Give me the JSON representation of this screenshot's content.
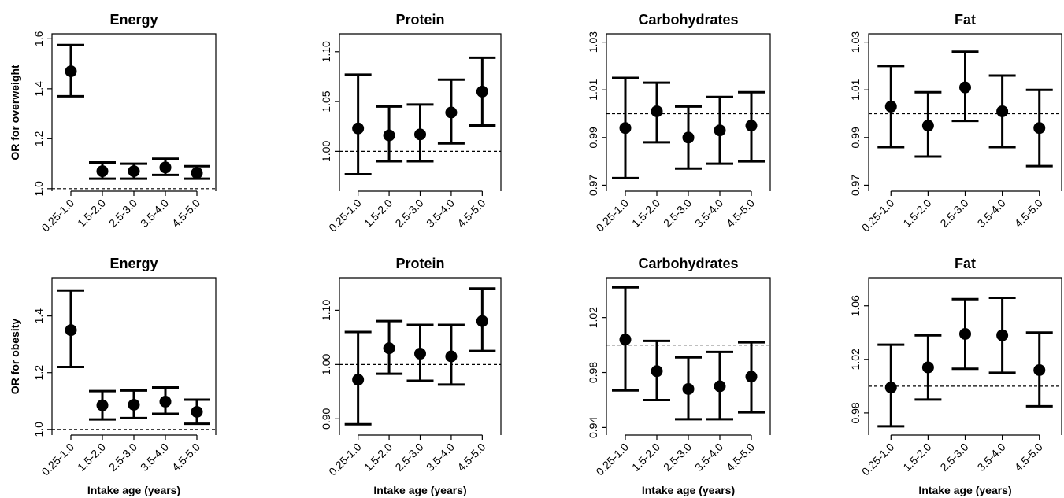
{
  "chart_data": [
    {
      "type": "errorbar",
      "row": 0,
      "col": 0,
      "title": "Energy",
      "ylabel": "OR for overweight",
      "xlabel": "",
      "categories": [
        "0.25-1.0",
        "1.5-2.0",
        "2.5-3.0",
        "3.5-4.0",
        "4.5-5.0"
      ],
      "values": [
        1.47,
        1.07,
        1.07,
        1.085,
        1.063
      ],
      "lower": [
        1.37,
        1.04,
        1.04,
        1.055,
        1.04
      ],
      "upper": [
        1.575,
        1.105,
        1.1,
        1.12,
        1.09
      ],
      "reference": 1.0,
      "ylim": [
        0.99,
        1.62
      ],
      "yticks": [
        1.0,
        1.2,
        1.4,
        1.6
      ],
      "ytick_labels": [
        "1.0",
        "1.2",
        "1.4",
        "1.6"
      ]
    },
    {
      "type": "errorbar",
      "row": 0,
      "col": 1,
      "title": "Protein",
      "ylabel": "",
      "xlabel": "",
      "categories": [
        "0.25-1.0",
        "1.5-2.0",
        "2.5-3.0",
        "3.5-4.0",
        "4.5-5.0"
      ],
      "values": [
        1.023,
        1.016,
        1.017,
        1.039,
        1.06
      ],
      "lower": [
        0.977,
        0.99,
        0.99,
        1.008,
        1.026
      ],
      "upper": [
        1.077,
        1.045,
        1.047,
        1.072,
        1.094
      ],
      "reference": 1.0,
      "ylim": [
        0.96,
        1.118
      ],
      "yticks": [
        1.0,
        1.05,
        1.1
      ],
      "ytick_labels": [
        "1.00",
        "1.05",
        "1.10"
      ]
    },
    {
      "type": "errorbar",
      "row": 0,
      "col": 2,
      "title": "Carbohydrates",
      "ylabel": "",
      "xlabel": "",
      "categories": [
        "0.25-1.0",
        "1.5-2.0",
        "2.5-3.0",
        "3.5-4.0",
        "4.5-5.0"
      ],
      "values": [
        0.994,
        1.001,
        0.99,
        0.993,
        0.995
      ],
      "lower": [
        0.973,
        0.988,
        0.977,
        0.979,
        0.98
      ],
      "upper": [
        1.015,
        1.013,
        1.003,
        1.007,
        1.009
      ],
      "reference": 1.0,
      "ylim": [
        0.9675,
        1.0335
      ],
      "yticks": [
        0.97,
        0.99,
        1.01,
        1.03
      ],
      "ytick_labels": [
        "0.97",
        "0.99",
        "1.01",
        "1.03"
      ]
    },
    {
      "type": "errorbar",
      "row": 0,
      "col": 3,
      "title": "Fat",
      "ylabel": "",
      "xlabel": "",
      "categories": [
        "0.25-1.0",
        "1.5-2.0",
        "2.5-3.0",
        "3.5-4.0",
        "4.5-5.0"
      ],
      "values": [
        1.003,
        0.995,
        1.011,
        1.001,
        0.994
      ],
      "lower": [
        0.986,
        0.982,
        0.997,
        0.986,
        0.978
      ],
      "upper": [
        1.02,
        1.009,
        1.026,
        1.016,
        1.01
      ],
      "reference": 1.0,
      "ylim": [
        0.9675,
        1.0335
      ],
      "yticks": [
        0.97,
        0.99,
        1.01,
        1.03
      ],
      "ytick_labels": [
        "0.97",
        "0.99",
        "1.01",
        "1.03"
      ]
    },
    {
      "type": "errorbar",
      "row": 1,
      "col": 0,
      "title": "Energy",
      "ylabel": "OR for obesity",
      "xlabel": "Intake age (years)",
      "categories": [
        "0.25-1.0",
        "1.5-2.0",
        "2.5-3.0",
        "3.5-4.0",
        "4.5-5.0"
      ],
      "values": [
        1.35,
        1.085,
        1.087,
        1.098,
        1.062
      ],
      "lower": [
        1.22,
        1.035,
        1.04,
        1.055,
        1.02
      ],
      "upper": [
        1.49,
        1.135,
        1.137,
        1.148,
        1.105
      ],
      "reference": 1.0,
      "ylim": [
        0.98,
        1.535
      ],
      "yticks": [
        1.0,
        1.2,
        1.4
      ],
      "ytick_labels": [
        "1.0",
        "1.2",
        "1.4"
      ]
    },
    {
      "type": "errorbar",
      "row": 1,
      "col": 1,
      "title": "Protein",
      "ylabel": "",
      "xlabel": "Intake age (years)",
      "categories": [
        "0.25-1.0",
        "1.5-2.0",
        "2.5-3.0",
        "3.5-4.0",
        "4.5-5.0"
      ],
      "values": [
        0.972,
        1.03,
        1.02,
        1.015,
        1.08
      ],
      "lower": [
        0.89,
        0.983,
        0.97,
        0.963,
        1.025
      ],
      "upper": [
        1.06,
        1.08,
        1.073,
        1.073,
        1.14
      ],
      "reference": 1.0,
      "ylim": [
        0.87,
        1.16
      ],
      "yticks": [
        0.9,
        1.0,
        1.1
      ],
      "ytick_labels": [
        "0.90",
        "1.00",
        "1.10"
      ]
    },
    {
      "type": "errorbar",
      "row": 1,
      "col": 2,
      "title": "Carbohydrates",
      "ylabel": "",
      "xlabel": "Intake age (years)",
      "categories": [
        "0.25-1.0",
        "1.5-2.0",
        "2.5-3.0",
        "3.5-4.0",
        "4.5-5.0"
      ],
      "values": [
        1.004,
        0.981,
        0.968,
        0.97,
        0.977
      ],
      "lower": [
        0.967,
        0.96,
        0.946,
        0.946,
        0.951
      ],
      "upper": [
        1.042,
        1.003,
        0.991,
        0.995,
        1.002
      ],
      "reference": 1.0,
      "ylim": [
        0.9345,
        1.049
      ],
      "yticks": [
        0.94,
        0.98,
        1.02
      ],
      "ytick_labels": [
        "0.94",
        "0.98",
        "1.02"
      ]
    },
    {
      "type": "errorbar",
      "row": 1,
      "col": 3,
      "title": "Fat",
      "ylabel": "",
      "xlabel": "Intake age (years)",
      "categories": [
        "0.25-1.0",
        "1.5-2.0",
        "2.5-3.0",
        "3.5-4.0",
        "4.5-5.0"
      ],
      "values": [
        0.999,
        1.014,
        1.039,
        1.038,
        1.012
      ],
      "lower": [
        0.97,
        0.99,
        1.013,
        1.01,
        0.985
      ],
      "upper": [
        1.031,
        1.038,
        1.065,
        1.066,
        1.04
      ],
      "reference": 1.0,
      "ylim": [
        0.9635,
        1.081
      ],
      "yticks": [
        0.98,
        1.02,
        1.06
      ],
      "ytick_labels": [
        "0.98",
        "1.02",
        "1.06"
      ]
    }
  ]
}
